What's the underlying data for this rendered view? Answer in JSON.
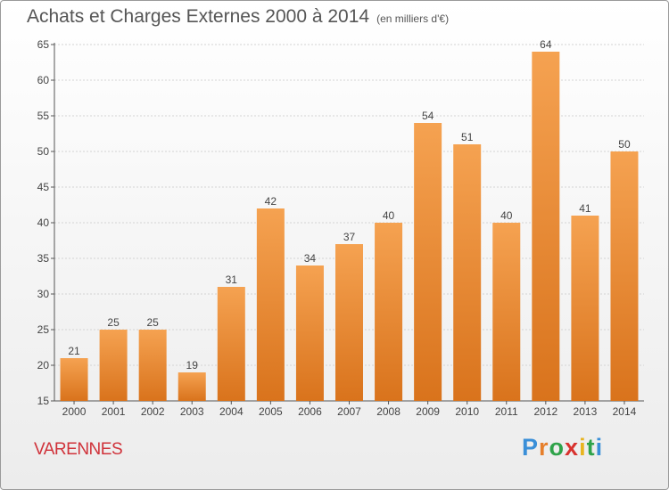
{
  "title": "Achats et Charges Externes 2000 à 2014",
  "subtitle": "(en milliers d'€)",
  "location": "VARENNES",
  "logo": {
    "letters": [
      "P",
      "r",
      "o",
      "x",
      "i",
      "t",
      "i"
    ],
    "colors": [
      "#3a8fd8",
      "#e67f2b",
      "#2fa34a",
      "#d8322e",
      "#e8b41f",
      "#2fa34a",
      "#3a8fd8"
    ]
  },
  "colors": {
    "bar_top": "#f5a251",
    "bar_bottom": "#d9731c",
    "axis": "#555555",
    "grid": "#d3d3d3"
  },
  "chart_data": {
    "type": "bar",
    "categories": [
      "2000",
      "2001",
      "2002",
      "2003",
      "2004",
      "2005",
      "2006",
      "2007",
      "2008",
      "2009",
      "2010",
      "2011",
      "2012",
      "2013",
      "2014"
    ],
    "values": [
      21,
      25,
      25,
      19,
      31,
      42,
      34,
      37,
      40,
      54,
      51,
      40,
      64,
      41,
      50
    ],
    "title": "Achats et Charges Externes 2000 à 2014",
    "ylabel": "",
    "xlabel": "",
    "ylim": [
      15,
      65
    ],
    "yticks": [
      15,
      20,
      25,
      30,
      35,
      40,
      45,
      50,
      55,
      60,
      65
    ],
    "grid": "horizontal",
    "data_labels": true
  }
}
